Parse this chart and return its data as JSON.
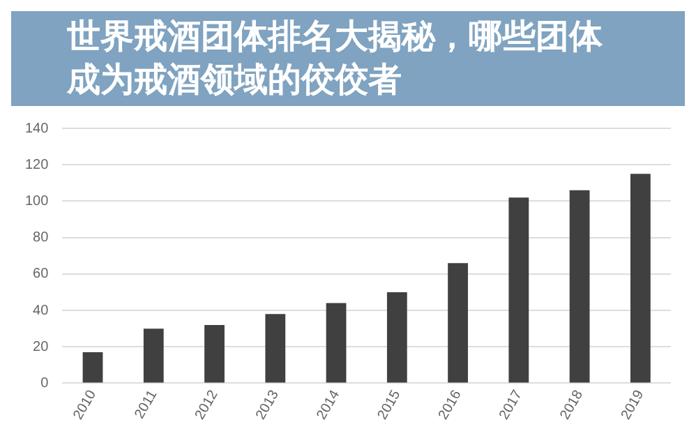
{
  "chart_data": {
    "type": "bar",
    "title": "世界戒酒团体排名大揭秘，哪些团体成为戒酒领域的佼佼者",
    "categories": [
      "2010",
      "2011",
      "2012",
      "2013",
      "2014",
      "2015",
      "2016",
      "2017",
      "2018",
      "2019"
    ],
    "values": [
      17,
      30,
      32,
      38,
      44,
      50,
      66,
      102,
      106,
      115
    ],
    "color": "#404040",
    "ylim": [
      0,
      140
    ],
    "yticks": [
      0,
      20,
      40,
      60,
      80,
      100,
      120,
      140
    ],
    "grid": "y"
  }
}
